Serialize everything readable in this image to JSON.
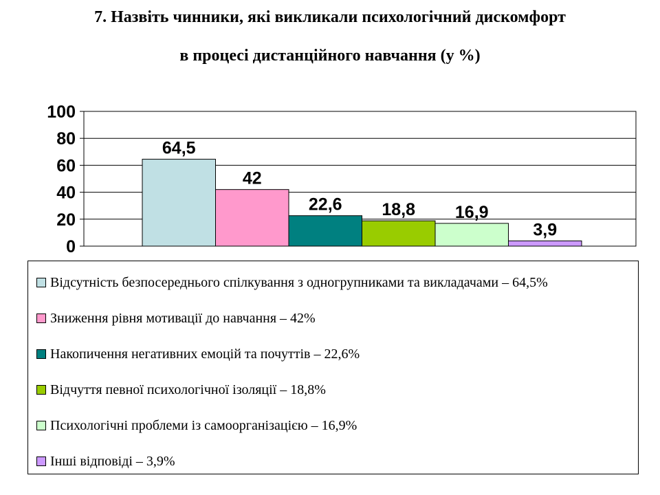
{
  "title_line1": "7. Назвіть чинники, які викликали психологічний дискомфорт",
  "title_line2": "в процесі дистанційного навчання (у %)",
  "chart_data": {
    "type": "bar",
    "title": "7. Назвіть чинники, які викликали психологічний дискомфорт в процесі дистанційного навчання (у %)",
    "xlabel": "",
    "ylabel": "",
    "ylim": [
      0,
      100
    ],
    "yticks": [
      "0",
      "20",
      "40",
      "60",
      "80",
      "100"
    ],
    "grid": true,
    "legend_position": "bottom",
    "series": [
      {
        "name": "Відсутність безпосереднього спілкування з одногрупниками та викладачами – 64,5%",
        "value": 64.5,
        "label": "64,5",
        "color": "#C0E0E4"
      },
      {
        "name": "Зниження рівня мотивації до навчання – 42%",
        "value": 42,
        "label": "42",
        "color": "#FF99CC"
      },
      {
        "name": "Накопичення негативних емоцій та почуттів – 22,6%",
        "value": 22.6,
        "label": "22,6",
        "color": "#008080"
      },
      {
        "name": "Відчуття певної психологічної ізоляції – 18,8%",
        "value": 18.8,
        "label": "18,8",
        "color": "#99CC00"
      },
      {
        "name": "Психологічні проблеми із самоорганізацією – 16,9%",
        "value": 16.9,
        "label": "16,9",
        "color": "#CCFFCC"
      },
      {
        "name": "Інші відповіді – 3,9%",
        "value": 3.9,
        "label": "3,9",
        "color": "#CC99FF"
      }
    ]
  }
}
